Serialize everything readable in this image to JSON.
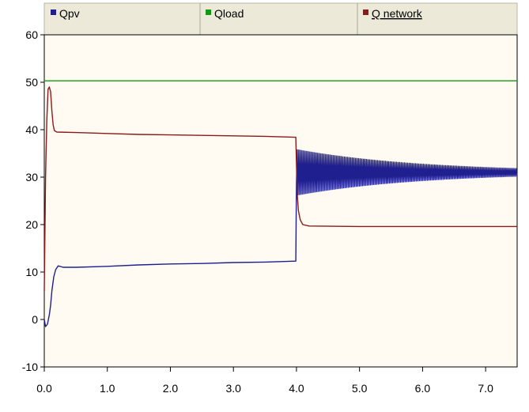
{
  "chart_data": {
    "type": "line",
    "legend": [
      {
        "name": "Qpv",
        "color": "#1f1f8f",
        "underline": false
      },
      {
        "name": "Qload",
        "color": "#119911",
        "underline": false
      },
      {
        "name": "Q network",
        "color": "#8b1a1a",
        "underline": true
      }
    ],
    "xlim": [
      0,
      7.5
    ],
    "ylim": [
      -10,
      60
    ],
    "x_ticks": [
      0.0,
      1.0,
      2.0,
      3.0,
      4.0,
      5.0,
      6.0,
      7.0
    ],
    "x_tick_labels": [
      "0.0",
      "1.0",
      "2.0",
      "3.0",
      "4.0",
      "5.0",
      "6.0",
      "7.0"
    ],
    "y_ticks": [
      -10,
      0,
      10,
      20,
      30,
      40,
      50,
      60
    ],
    "y_tick_labels": [
      "-10",
      "0",
      "10",
      "20",
      "30",
      "40",
      "50",
      "60"
    ],
    "grid": false,
    "legend_position": "top",
    "plot_background": "#fffbf2",
    "series": [
      {
        "name": "Qpv",
        "color": "#1f1f8f",
        "points": [
          [
            0.0,
            0.0
          ],
          [
            0.02,
            -1.5
          ],
          [
            0.05,
            -1.0
          ],
          [
            0.08,
            1.0
          ],
          [
            0.1,
            3.0
          ],
          [
            0.12,
            6.0
          ],
          [
            0.15,
            9.0
          ],
          [
            0.18,
            10.5
          ],
          [
            0.22,
            11.3
          ],
          [
            0.3,
            11.0
          ],
          [
            0.5,
            11.0
          ],
          [
            1.0,
            11.2
          ],
          [
            1.5,
            11.5
          ],
          [
            2.0,
            11.7
          ],
          [
            2.5,
            11.8
          ],
          [
            3.0,
            12.0
          ],
          [
            3.5,
            12.1
          ],
          [
            3.99,
            12.3
          ],
          [
            4.0,
            29.0
          ],
          [
            4.05,
            31.0
          ]
        ],
        "oscillation": {
          "start": 4.0,
          "end": 7.5,
          "center": 31.0,
          "amplitude_start": 4.8,
          "amplitude_end": 0.8,
          "period": 0.025
        }
      },
      {
        "name": "Qload",
        "color": "#119911",
        "points": [
          [
            0.0,
            50.3
          ],
          [
            7.5,
            50.3
          ]
        ]
      },
      {
        "name": "Q network",
        "color": "#8b1a1a",
        "points": [
          [
            0.0,
            6.0
          ],
          [
            0.02,
            30.0
          ],
          [
            0.04,
            42.0
          ],
          [
            0.06,
            48.5
          ],
          [
            0.08,
            49.0
          ],
          [
            0.1,
            48.0
          ],
          [
            0.12,
            44.0
          ],
          [
            0.14,
            41.0
          ],
          [
            0.16,
            39.8
          ],
          [
            0.2,
            39.5
          ],
          [
            0.5,
            39.4
          ],
          [
            1.0,
            39.2
          ],
          [
            1.5,
            39.0
          ],
          [
            2.0,
            38.9
          ],
          [
            2.5,
            38.8
          ],
          [
            3.0,
            38.7
          ],
          [
            3.5,
            38.6
          ],
          [
            3.99,
            38.4
          ],
          [
            4.01,
            27.0
          ],
          [
            4.03,
            23.0
          ],
          [
            4.06,
            21.0
          ],
          [
            4.1,
            20.0
          ],
          [
            4.2,
            19.7
          ],
          [
            5.0,
            19.6
          ],
          [
            6.0,
            19.6
          ],
          [
            7.5,
            19.6
          ]
        ]
      }
    ]
  }
}
